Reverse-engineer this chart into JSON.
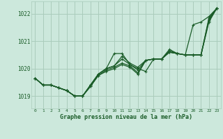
{
  "title": "Graphe pression niveau de la mer (hPa)",
  "background_color": "#cce8dc",
  "grid_color": "#aaccbc",
  "line_color": "#1a5c28",
  "xlim": [
    -0.5,
    23.5
  ],
  "ylim": [
    1018.55,
    1022.45
  ],
  "yticks": [
    1019,
    1020,
    1021,
    1022
  ],
  "xticks": [
    0,
    1,
    2,
    3,
    4,
    5,
    6,
    7,
    8,
    9,
    10,
    11,
    12,
    13,
    14,
    15,
    16,
    17,
    18,
    19,
    20,
    21,
    22,
    23
  ],
  "series": [
    [
      1019.65,
      1019.4,
      1019.4,
      1019.3,
      1019.2,
      1019.0,
      1019.0,
      1019.4,
      1019.8,
      1020.0,
      1020.55,
      1020.55,
      1020.15,
      1019.95,
      1020.3,
      1020.35,
      1020.35,
      1020.6,
      1020.55,
      1020.5,
      1021.6,
      1021.7,
      1021.9,
      1022.2
    ],
    [
      1019.65,
      1019.4,
      1019.4,
      1019.3,
      1019.2,
      1019.0,
      1019.0,
      1019.4,
      1019.8,
      1020.0,
      1020.1,
      1020.45,
      1020.2,
      1020.05,
      1020.3,
      1020.35,
      1020.35,
      1020.6,
      1020.55,
      1020.5,
      1020.5,
      1020.5,
      1021.85,
      1022.2
    ],
    [
      1019.65,
      1019.4,
      1019.4,
      1019.3,
      1019.2,
      1019.0,
      1019.0,
      1019.4,
      1019.8,
      1020.0,
      1020.1,
      1020.35,
      1020.15,
      1020.0,
      1019.9,
      1020.35,
      1020.35,
      1020.6,
      1020.55,
      1020.5,
      1020.5,
      1020.5,
      1021.8,
      1022.2
    ],
    [
      1019.65,
      1019.4,
      1019.4,
      1019.3,
      1019.2,
      1019.0,
      1019.0,
      1019.35,
      1019.75,
      1019.95,
      1020.05,
      1020.2,
      1020.1,
      1019.85,
      1020.3,
      1020.35,
      1020.35,
      1020.65,
      1020.55,
      1020.5,
      1020.5,
      1020.5,
      1021.75,
      1022.2
    ],
    [
      1019.65,
      1019.4,
      1019.4,
      1019.3,
      1019.2,
      1019.0,
      1019.0,
      1019.35,
      1019.75,
      1019.9,
      1020.0,
      1020.15,
      1020.05,
      1019.8,
      1020.3,
      1020.35,
      1020.35,
      1020.7,
      1020.55,
      1020.5,
      1020.5,
      1020.5,
      1021.7,
      1022.2
    ]
  ]
}
